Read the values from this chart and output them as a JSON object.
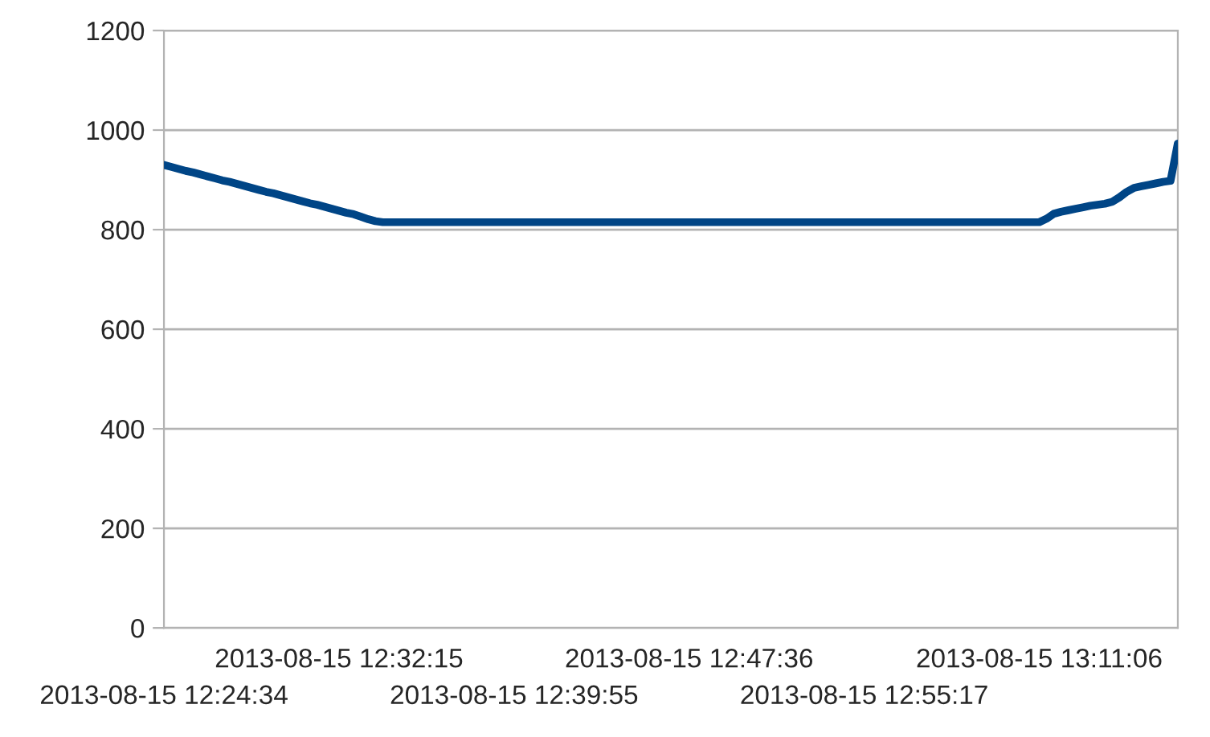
{
  "chart_data": {
    "type": "line",
    "categories": [
      "2013-08-15 12:24:34",
      null,
      null,
      null,
      null,
      null,
      null,
      null,
      null,
      null,
      null,
      null,
      null,
      null,
      null,
      null,
      null,
      null,
      null,
      null,
      null,
      null,
      null,
      null,
      "2013-08-15 12:32:15",
      null,
      null,
      null,
      null,
      null,
      null,
      null,
      null,
      null,
      null,
      null,
      null,
      null,
      null,
      null,
      null,
      null,
      null,
      null,
      null,
      null,
      null,
      null,
      "2013-08-15 12:39:55",
      null,
      null,
      null,
      null,
      null,
      null,
      null,
      null,
      null,
      null,
      null,
      null,
      null,
      null,
      null,
      null,
      null,
      null,
      null,
      null,
      null,
      null,
      null,
      "2013-08-15 12:47:36",
      null,
      null,
      null,
      null,
      null,
      null,
      null,
      null,
      null,
      null,
      null,
      null,
      null,
      null,
      null,
      null,
      null,
      null,
      null,
      null,
      null,
      null,
      null,
      "2013-08-15 12:55:17",
      null,
      null,
      null,
      null,
      null,
      null,
      null,
      null,
      null,
      null,
      null,
      null,
      null,
      null,
      null,
      null,
      null,
      null,
      null,
      null,
      null,
      null,
      null,
      "2013-08-15 13:11:06",
      null,
      null,
      null,
      null,
      null,
      null,
      null,
      null,
      null,
      null,
      null,
      null,
      null,
      null,
      null,
      null,
      null,
      null,
      null
    ],
    "series": [
      {
        "color": "#004586",
        "values": [
          930,
          926,
          922,
          918,
          915,
          911,
          907,
          903,
          899,
          896,
          892,
          888,
          884,
          880,
          876,
          873,
          869,
          865,
          861,
          857,
          853,
          850,
          846,
          842,
          838,
          834,
          831,
          826,
          821,
          817,
          815,
          815,
          815,
          815,
          815,
          815,
          815,
          815,
          815,
          815,
          815,
          815,
          815,
          815,
          815,
          815,
          815,
          815,
          815,
          815,
          815,
          815,
          815,
          815,
          815,
          815,
          815,
          815,
          815,
          815,
          815,
          815,
          815,
          815,
          815,
          815,
          815,
          815,
          815,
          815,
          815,
          815,
          815,
          815,
          815,
          815,
          815,
          815,
          815,
          815,
          815,
          815,
          815,
          815,
          815,
          815,
          815,
          815,
          815,
          815,
          815,
          815,
          815,
          815,
          815,
          815,
          815,
          815,
          815,
          815,
          815,
          815,
          815,
          815,
          815,
          815,
          815,
          815,
          815,
          815,
          815,
          815,
          815,
          815,
          815,
          815,
          815,
          815,
          815,
          815,
          815,
          822,
          832,
          836,
          839,
          842,
          845,
          848,
          850,
          852,
          856,
          865,
          876,
          884,
          887,
          890,
          893,
          896,
          898,
          973
        ]
      }
    ],
    "ylim": [
      0,
      1200
    ],
    "yticks": [
      0,
      200,
      400,
      600,
      800,
      1000,
      1200
    ],
    "grid": "y",
    "marker": "none",
    "line_style": "solid"
  }
}
